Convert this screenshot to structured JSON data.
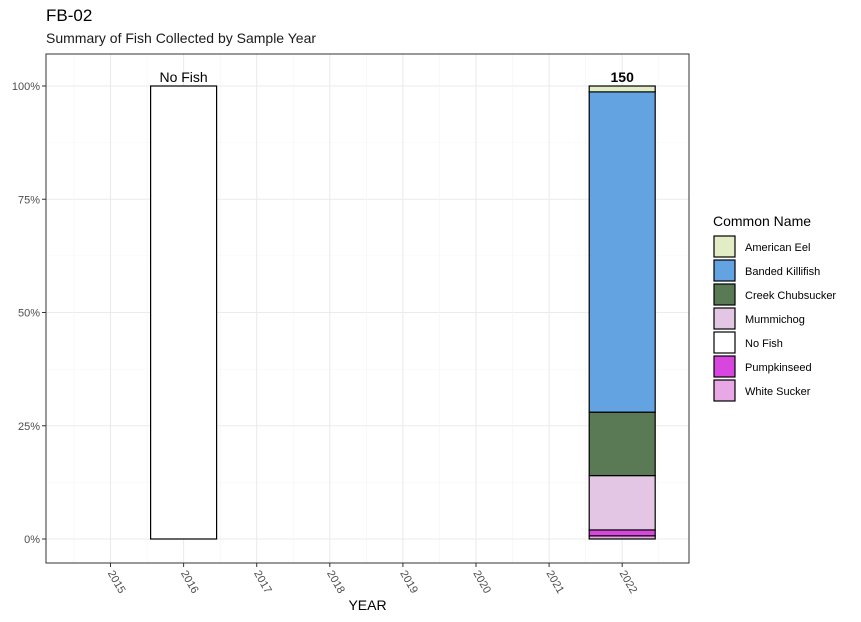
{
  "chart_data": {
    "type": "bar",
    "stacked": true,
    "percent_scale": true,
    "title": "FB-02",
    "subtitle": "Summary of Fish Collected by Sample Year",
    "xlabel": "YEAR",
    "ylabel": "",
    "categories": [
      "2015",
      "2016",
      "2017",
      "2018",
      "2019",
      "2020",
      "2021",
      "2022"
    ],
    "y_ticks": [
      "0%",
      "25%",
      "50%",
      "75%",
      "100%"
    ],
    "ylim": [
      0,
      1
    ],
    "grid": true,
    "legend": {
      "title": "Common Name",
      "position": "right"
    },
    "series": [
      {
        "name": "American Eel",
        "color": "#E2EDC6",
        "values": [
          0,
          0,
          0,
          0,
          0,
          0,
          0,
          0.013
        ]
      },
      {
        "name": "Banded Killifish",
        "color": "#63A3E1",
        "values": [
          0,
          0,
          0,
          0,
          0,
          0,
          0,
          0.707
        ]
      },
      {
        "name": "Creek Chubsucker",
        "color": "#5A7A55",
        "values": [
          0,
          0,
          0,
          0,
          0,
          0,
          0,
          0.14
        ]
      },
      {
        "name": "Mummichog",
        "color": "#E2C6E4",
        "values": [
          0,
          0,
          0,
          0,
          0,
          0,
          0,
          0.12
        ]
      },
      {
        "name": "No Fish",
        "color": "#FFFFFF",
        "values": [
          0,
          1,
          0,
          0,
          0,
          0,
          0,
          0
        ]
      },
      {
        "name": "Pumpkinseed",
        "color": "#D846E0",
        "values": [
          0,
          0,
          0,
          0,
          0,
          0,
          0,
          0.013
        ]
      },
      {
        "name": "White Sucker",
        "color": "#E8A8E6",
        "values": [
          0,
          0,
          0,
          0,
          0,
          0,
          0,
          0.007
        ]
      }
    ],
    "bar_labels": [
      {
        "category": "2016",
        "text": "No Fish",
        "bold": false
      },
      {
        "category": "2022",
        "text": "150",
        "bold": true
      }
    ]
  }
}
